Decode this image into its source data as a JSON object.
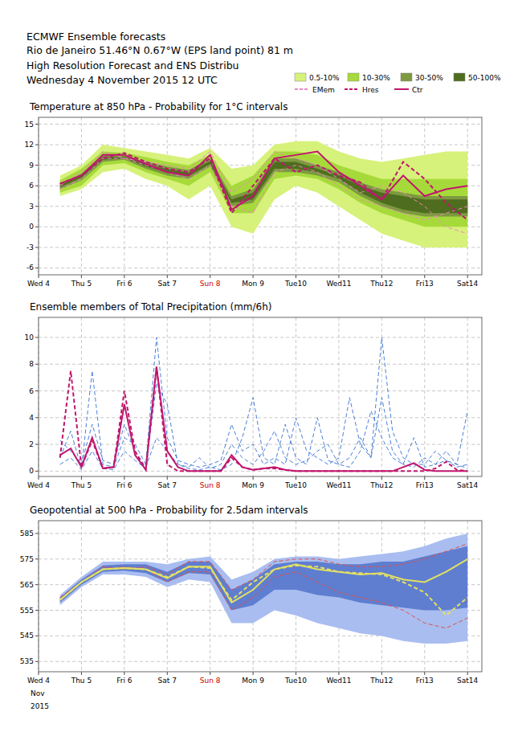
{
  "header": {
    "lines": [
      "ECMWF Ensemble forecasts",
      "Rio de Janeiro 51.46°N 0.67°W (EPS land point) 81 m",
      "High Resolution Forecast and ENS Distribu",
      "Wednesday  4 November 2015 12 UTC"
    ]
  },
  "chart_data": [
    {
      "type": "line",
      "title": "Temperature at 850 hPa - Probability for 1°C intervals",
      "x": [
        12,
        24,
        36,
        48,
        60,
        72,
        84,
        96,
        108,
        120,
        132,
        144,
        156,
        168,
        180,
        192,
        204,
        216,
        228,
        240
      ],
      "xlim": [
        0,
        248
      ],
      "xticks": [
        {
          "value": 0,
          "label": "Wed 4"
        },
        {
          "value": 24,
          "label": "Thu 5"
        },
        {
          "value": 48,
          "label": "Fri 6"
        },
        {
          "value": 72,
          "label": "Sat 7"
        },
        {
          "value": 96,
          "label": "Sun 8",
          "color": "#cc0000"
        },
        {
          "value": 120,
          "label": "Mon 9"
        },
        {
          "value": 144,
          "label": "Tue10"
        },
        {
          "value": 168,
          "label": "Wed11"
        },
        {
          "value": 192,
          "label": "Thu12"
        },
        {
          "value": 216,
          "label": "Fri13"
        },
        {
          "value": 240,
          "label": "Sat14"
        }
      ],
      "ylim": [
        -7,
        16
      ],
      "yticks": [
        -6,
        -3,
        0,
        3,
        6,
        9,
        12,
        15
      ],
      "grid": true,
      "series": [
        {
          "name": "0.5-10%",
          "type": "band",
          "color": "#d6f27a",
          "low": [
            4.5,
            5.5,
            8,
            8.5,
            7,
            6,
            4,
            6,
            0,
            -1,
            4,
            6,
            5,
            3,
            1,
            -1,
            -2,
            -3,
            -3,
            -3
          ],
          "values": [
            7.5,
            9,
            12,
            11.5,
            11,
            10.5,
            10,
            11.5,
            8.5,
            9,
            12,
            12.5,
            12.5,
            11,
            10,
            9.5,
            10,
            10.5,
            11,
            11
          ]
        },
        {
          "name": "10-30%",
          "type": "band",
          "color": "#a6da3a",
          "low": [
            5,
            6,
            9,
            9.3,
            8,
            7,
            6,
            8,
            2,
            2,
            7,
            7.5,
            7,
            5.5,
            3.5,
            2,
            1,
            0,
            0,
            0
          ],
          "values": [
            6.8,
            8.5,
            11,
            10.8,
            10.2,
            9.5,
            9,
            10.5,
            6,
            7.5,
            11,
            11,
            10.5,
            9,
            8,
            7,
            7,
            7,
            7,
            7
          ]
        },
        {
          "name": "30-50%",
          "type": "band",
          "color": "#7d9a40",
          "low": [
            5.5,
            6.8,
            9.5,
            9.8,
            8.5,
            7.5,
            7,
            8.8,
            3,
            3.5,
            8,
            8,
            7.5,
            6.5,
            4.5,
            3,
            2,
            1.5,
            1.5,
            1.5
          ],
          "values": [
            6.3,
            7.8,
            10.5,
            10.4,
            9.5,
            8.8,
            8.3,
            10,
            4.5,
            5.5,
            10,
            10,
            9,
            8,
            6.5,
            5.5,
            5,
            4.5,
            4.5,
            4.5
          ]
        },
        {
          "name": "50-100%",
          "type": "band",
          "color": "#4f6d1e",
          "low": [
            5.8,
            7.2,
            9.8,
            10,
            8.8,
            7.9,
            7.4,
            9.2,
            3.5,
            4,
            8.5,
            8.5,
            8,
            7,
            5,
            3.5,
            2.5,
            2,
            2,
            2
          ],
          "values": [
            6.1,
            7.5,
            10.2,
            10.2,
            9.2,
            8.4,
            7.9,
            9.6,
            4,
            5,
            9.5,
            9.5,
            8.5,
            7.5,
            6,
            5,
            4.5,
            4,
            4,
            4
          ]
        },
        {
          "name": "EMem",
          "type": "line",
          "line_style": "dashed",
          "color": "#ef86c6",
          "values": [
            5.5,
            7,
            10,
            10,
            9,
            8,
            7,
            9,
            3,
            2,
            8,
            9,
            8,
            6,
            4,
            3,
            2,
            1,
            2,
            3
          ]
        },
        {
          "name": "EMem",
          "type": "line",
          "line_style": "dashed",
          "color": "#ef86c6",
          "values": [
            6,
            8,
            11,
            10,
            9.5,
            9,
            8.5,
            11,
            5,
            7,
            11,
            10,
            9,
            7,
            5,
            6,
            5,
            3,
            0,
            -1
          ]
        },
        {
          "name": "Hres",
          "type": "line",
          "line_style": "dashed",
          "color": "#c0166e",
          "values": [
            6.3,
            7.5,
            10,
            10.8,
            9.5,
            8.5,
            8,
            10,
            2,
            6,
            10,
            8,
            9,
            7.5,
            6.5,
            4,
            9.5,
            7,
            3.5,
            1
          ]
        },
        {
          "name": "Ctr",
          "type": "line",
          "line_style": "solid",
          "color": "#c0166e",
          "values": [
            6.3,
            7.5,
            10.5,
            10.5,
            9.2,
            8,
            7.5,
            10.5,
            2.5,
            4.5,
            10,
            10.5,
            11,
            8,
            6,
            4,
            7.5,
            4.5,
            5.5,
            6
          ]
        }
      ]
    },
    {
      "type": "line",
      "title": "Ensemble members of Total Precipitation (mm/6h)",
      "x": [
        12,
        18,
        24,
        30,
        36,
        42,
        48,
        54,
        60,
        66,
        72,
        78,
        84,
        90,
        96,
        102,
        108,
        114,
        120,
        126,
        132,
        138,
        144,
        150,
        156,
        162,
        168,
        174,
        180,
        186,
        192,
        198,
        204,
        210,
        216,
        222,
        228,
        234,
        240
      ],
      "xlim": [
        0,
        248
      ],
      "xticks": [
        {
          "value": 0,
          "label": "Wed 4"
        },
        {
          "value": 24,
          "label": "Thu 5"
        },
        {
          "value": 48,
          "label": "Fri 6"
        },
        {
          "value": 72,
          "label": "Sat 7"
        },
        {
          "value": 96,
          "label": "Sun 8",
          "color": "#cc0000"
        },
        {
          "value": 120,
          "label": "Mon 9"
        },
        {
          "value": 144,
          "label": "Tue10"
        },
        {
          "value": 168,
          "label": "Wed11"
        },
        {
          "value": 192,
          "label": "Thu12"
        },
        {
          "value": 216,
          "label": "Fri13"
        },
        {
          "value": 240,
          "label": "Sat14"
        }
      ],
      "ylim": [
        -0.4,
        11.5
      ],
      "yticks": [
        0,
        2,
        4,
        6,
        8,
        10
      ],
      "grid": true,
      "series": [
        {
          "name": "EMem",
          "type": "line",
          "line_style": "dashed",
          "color": "#4a7fd8",
          "values": [
            2.3,
            1.5,
            0.5,
            3.5,
            0.8,
            0.5,
            3.5,
            1.5,
            0.3,
            2.5,
            1.5,
            0.5,
            0.3,
            1.0,
            0.2,
            0.5,
            2.0,
            1.0,
            0.5,
            1.5,
            3.0,
            1.0,
            0.5,
            0.8,
            1.5,
            2.0,
            0.5,
            1.0,
            2.5,
            1.0,
            5.5,
            1.5,
            0.5,
            0.3,
            1.0,
            0.5,
            0.8,
            0.3,
            0.5
          ]
        },
        {
          "name": "EMem",
          "type": "line",
          "line_style": "dashed",
          "color": "#4a7fd8",
          "values": [
            1.0,
            3.0,
            0.2,
            7.5,
            0.5,
            0.3,
            2.5,
            2.0,
            0.5,
            10.0,
            2.5,
            0.8,
            0.5,
            0.3,
            0.5,
            0.8,
            3.5,
            1.5,
            2.0,
            0.5,
            1.0,
            0.5,
            4.0,
            1.5,
            1.0,
            0.5,
            1.0,
            5.5,
            2.0,
            1.0,
            10.0,
            3.0,
            1.0,
            0.5,
            0.5,
            1.5,
            0.8,
            0.5,
            4.5
          ]
        },
        {
          "name": "EMem",
          "type": "line",
          "line_style": "dashed",
          "color": "#4a7fd8",
          "values": [
            0.5,
            1.0,
            0.1,
            1.5,
            0.2,
            0.1,
            1.5,
            0.8,
            0.2,
            6.5,
            5.0,
            0.5,
            0.2,
            0.1,
            0.3,
            0.1,
            0.5,
            2.5,
            5.5,
            1.0,
            0.5,
            3.5,
            1.0,
            0.5,
            4.0,
            0.8,
            0.5,
            0.3,
            1.5,
            4.5,
            2.5,
            1.0,
            0.5,
            2.5,
            0.3,
            0.5,
            1.5,
            0.5,
            0.2
          ]
        },
        {
          "name": "Hres",
          "type": "line",
          "line_style": "dashed",
          "color": "#c0166e",
          "values": [
            1.0,
            7.5,
            0.3,
            2.3,
            0.2,
            0.3,
            6.0,
            1.5,
            0.1,
            7.8,
            0.5,
            0,
            0,
            0,
            0,
            0,
            1.0,
            0.3,
            0.1,
            0.2,
            0.2,
            0.1,
            0,
            0,
            0,
            0,
            0,
            0,
            0,
            0,
            0,
            0,
            0,
            0,
            0,
            0.2,
            0.7,
            0.1,
            0
          ]
        },
        {
          "name": "Ctr",
          "type": "line",
          "line_style": "solid",
          "color": "#c0166e",
          "values": [
            1.2,
            1.7,
            0.3,
            2.5,
            0.2,
            0.3,
            5.0,
            1.2,
            0.1,
            7.8,
            1.5,
            0.3,
            0,
            0,
            0,
            0,
            1.2,
            0.3,
            0.1,
            0.2,
            0.3,
            0.1,
            0,
            0,
            0,
            0,
            0,
            0,
            0,
            0,
            0,
            0,
            0.3,
            0.6,
            0.1,
            0,
            0,
            0,
            0
          ]
        }
      ]
    },
    {
      "type": "line",
      "title": "Geopotential at 500 hPa - Probability for 2.5dam intervals",
      "x": [
        12,
        24,
        36,
        48,
        60,
        72,
        84,
        96,
        108,
        120,
        132,
        144,
        156,
        168,
        180,
        192,
        204,
        216,
        228,
        240
      ],
      "xlim": [
        0,
        248
      ],
      "xticks": [
        {
          "value": 0,
          "label": "Wed 4"
        },
        {
          "value": 24,
          "label": "Thu 5"
        },
        {
          "value": 48,
          "label": "Fri 6"
        },
        {
          "value": 72,
          "label": "Sat 7"
        },
        {
          "value": 96,
          "label": "Sun 8",
          "color": "#cc0000"
        },
        {
          "value": 120,
          "label": "Mon 9"
        },
        {
          "value": 144,
          "label": "Tue10"
        },
        {
          "value": 168,
          "label": "Wed11"
        },
        {
          "value": 192,
          "label": "Thu12"
        },
        {
          "value": 216,
          "label": "Fri13"
        },
        {
          "value": 240,
          "label": "Sat14"
        }
      ],
      "ylim": [
        531,
        590
      ],
      "yticks": [
        535,
        545,
        555,
        565,
        575,
        585
      ],
      "grid": true,
      "annotations": [
        "Nov",
        "2015"
      ],
      "series": [
        {
          "name": "0.5-10%",
          "type": "band",
          "color": "#a9bdf0",
          "low": [
            557,
            564,
            569,
            569,
            568,
            564,
            567,
            566,
            550,
            550,
            555,
            553,
            550,
            548,
            546,
            545,
            543,
            542,
            542,
            543
          ],
          "values": [
            561,
            568,
            574,
            574,
            574,
            573,
            575,
            576,
            567,
            570,
            575,
            576,
            576,
            575,
            576,
            577,
            578,
            580,
            583,
            585
          ]
        },
        {
          "name": "10-30%",
          "type": "band",
          "color": "#5f7ed0",
          "low": [
            558,
            565,
            570,
            570.5,
            569.5,
            566,
            569.5,
            569,
            555,
            557,
            563,
            563,
            561,
            560,
            558,
            557,
            556,
            555,
            555,
            556
          ],
          "values": [
            560,
            567,
            572.5,
            573,
            573,
            570,
            574,
            574,
            563,
            567,
            573,
            574,
            574,
            573,
            573,
            574,
            574,
            576,
            578,
            580
          ]
        },
        {
          "name": "EMem",
          "type": "line",
          "line_style": "dashed",
          "color": "#e0504a",
          "values": [
            559,
            566,
            571,
            572,
            571,
            566,
            570,
            570,
            555,
            560,
            568,
            570,
            566,
            562,
            560,
            558,
            555,
            550,
            548,
            552
          ]
        },
        {
          "name": "EMem",
          "type": "line",
          "line_style": "dashed",
          "color": "#e0504a",
          "values": [
            560,
            566,
            572,
            571,
            572,
            569,
            574,
            574,
            563,
            567,
            574,
            575,
            575,
            573,
            572,
            572,
            573,
            575,
            578,
            581
          ]
        },
        {
          "name": "Hres",
          "type": "line",
          "line_style": "dashed",
          "color": "#e4e060",
          "values": [
            559,
            566,
            571,
            571.5,
            571,
            568,
            572,
            571.5,
            559,
            566,
            571,
            572.5,
            572,
            570,
            569.5,
            569,
            566,
            562,
            553,
            560
          ]
        },
        {
          "name": "Ctr",
          "type": "line",
          "line_style": "solid",
          "color": "#e4e060",
          "values": [
            559,
            566,
            571,
            571.5,
            571,
            567.5,
            572,
            572,
            558,
            563,
            571,
            573,
            571,
            570,
            569,
            569.5,
            567,
            566,
            570,
            575
          ]
        }
      ]
    }
  ]
}
